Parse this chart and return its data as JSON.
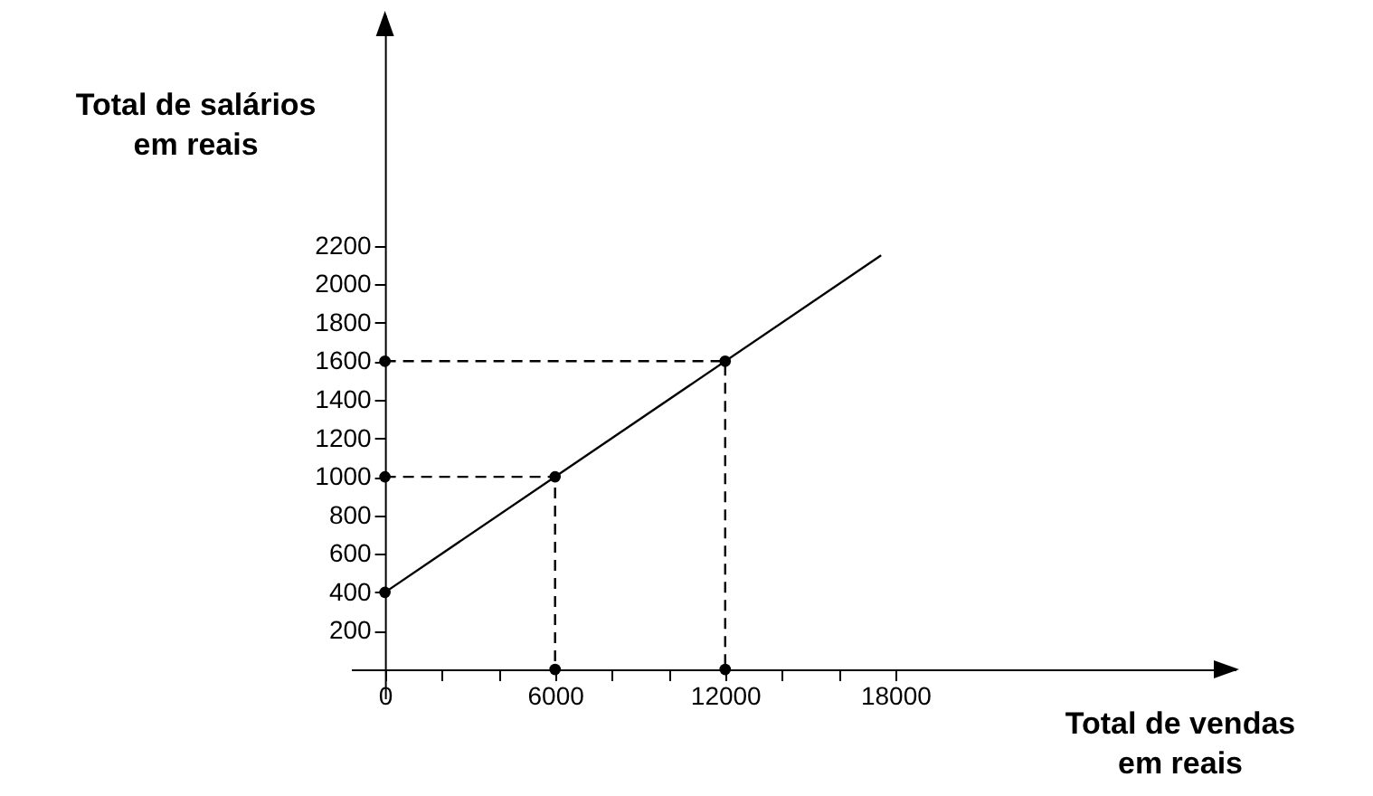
{
  "chart_data": {
    "type": "line",
    "xlabel": "Total de vendas\nem  reais",
    "ylabel": "Total de salários\nem  reais",
    "xlim": [
      -1200,
      30000
    ],
    "ylim": [
      -150,
      3400
    ],
    "xticks": [
      {
        "value": 0,
        "label": "0"
      },
      {
        "value": 2000,
        "label": null
      },
      {
        "value": 4000,
        "label": null
      },
      6000,
      {
        "value": 8000,
        "label": null
      },
      {
        "value": 10000,
        "label": null
      },
      12000,
      {
        "value": 14000,
        "label": null
      },
      {
        "value": 16000,
        "label": null
      },
      18000
    ],
    "yticks": [
      200,
      400,
      600,
      800,
      1000,
      1200,
      1400,
      1600,
      1800,
      2000,
      2200
    ],
    "series": [
      {
        "type": "line",
        "x": [
          0,
          17500
        ],
        "values": [
          400,
          2150
        ],
        "color": "#000000",
        "line_style": "solid"
      },
      {
        "type": "line",
        "x": [
          0,
          6000,
          6000
        ],
        "values": [
          1000,
          1000,
          0
        ],
        "color": "#000000",
        "line_style": "dashed"
      },
      {
        "type": "line",
        "x": [
          0,
          12000,
          12000
        ],
        "values": [
          1600,
          1600,
          0
        ],
        "color": "#000000",
        "line_style": "dashed"
      },
      {
        "type": "scatter",
        "x": [
          0,
          0,
          0,
          6000,
          12000,
          6000,
          12000
        ],
        "values": [
          400,
          1000,
          1600,
          1000,
          1600,
          0,
          0
        ],
        "color": "#000000",
        "marker": "circle"
      }
    ]
  }
}
